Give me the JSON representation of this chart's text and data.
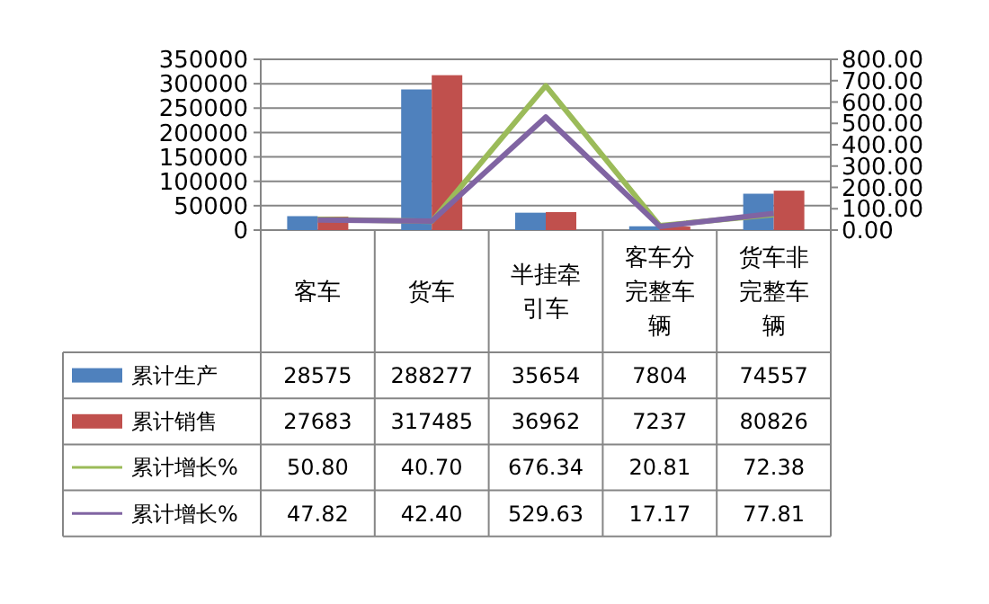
{
  "chart_data": {
    "type": "bar",
    "categories": [
      "客车",
      "货车",
      "半挂牵引车",
      "客车分完整车辆",
      "货车非完整车辆"
    ],
    "series": [
      {
        "name": "累计生产",
        "color": "#4f81bd",
        "values": [
          28575,
          288277,
          35654,
          7804,
          74557
        ]
      },
      {
        "name": "累计销售",
        "color": "#c0504d",
        "values": [
          27683,
          317485,
          36962,
          7237,
          80826
        ]
      },
      {
        "name": "累计增长%",
        "type": "line",
        "axis": "y2",
        "color": "#9bbb59",
        "values": [
          50.8,
          40.7,
          676.34,
          20.81,
          72.38
        ],
        "value_labels": [
          "50.80",
          "40.70",
          "676.34",
          "20.81",
          "72.38"
        ]
      },
      {
        "name": "累计增长%",
        "type": "line",
        "axis": "y2",
        "color": "#8064a2",
        "values": [
          47.82,
          42.4,
          529.63,
          17.17,
          77.81
        ],
        "value_labels": [
          "47.82",
          "42.40",
          "529.63",
          "17.17",
          "77.81"
        ]
      }
    ],
    "ylim": [
      0,
      350000
    ],
    "yticks": [
      0,
      50000,
      100000,
      150000,
      200000,
      250000,
      300000,
      350000
    ],
    "y2lim": [
      0,
      800
    ],
    "y2ticks": [
      {
        "value": 0,
        "label": "0.00"
      },
      {
        "value": 100,
        "label": "100.00"
      },
      {
        "value": 200,
        "label": "200.00"
      },
      {
        "value": 300,
        "label": "300.00"
      },
      {
        "value": 400,
        "label": "400.00"
      },
      {
        "value": 500,
        "label": "500.00"
      },
      {
        "value": 600,
        "label": "600.00"
      },
      {
        "value": 700,
        "label": "700.00"
      },
      {
        "value": 800,
        "label": "800.00"
      }
    ],
    "grid": "y",
    "legend": "bottom",
    "data_labels": true,
    "marker": "none",
    "line_style": "solid"
  }
}
